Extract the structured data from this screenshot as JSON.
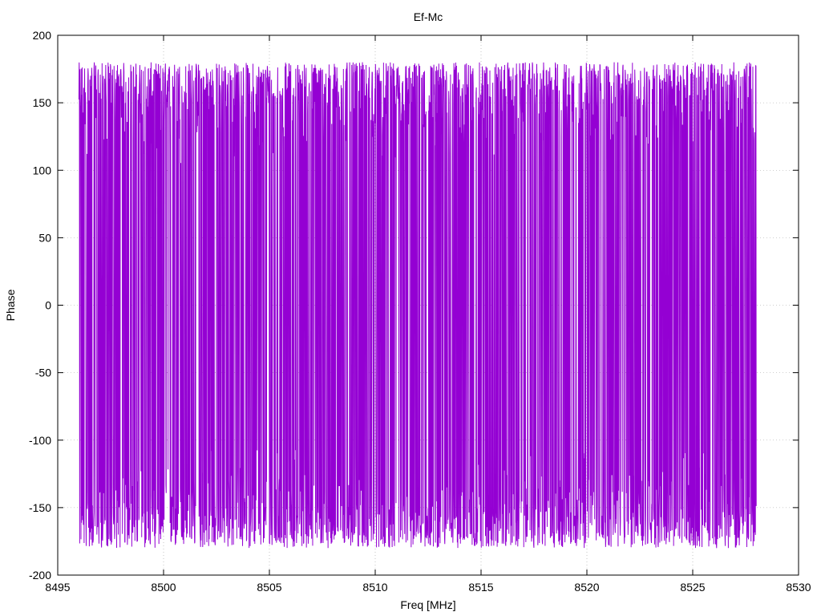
{
  "chart_data": {
    "type": "line",
    "title": "Ef-Mc",
    "xlabel": "Freq [MHz]",
    "ylabel": "Phase",
    "xlim": [
      8495,
      8530
    ],
    "ylim": [
      -200,
      200
    ],
    "xticks": [
      8495,
      8500,
      8505,
      8510,
      8515,
      8520,
      8525,
      8530
    ],
    "yticks": [
      200,
      150,
      100,
      50,
      0,
      -50,
      -100,
      -150,
      -200
    ],
    "grid": true,
    "series": [
      {
        "color": "#9400d3",
        "x_range": [
          8496,
          8528
        ],
        "y_range": [
          -180,
          180
        ],
        "description_of_values": "dense phase-wrapped signal spanning nearly the full range at every sample"
      }
    ]
  },
  "colors": {
    "series": "#9400d3",
    "grid": "#a0a0a0",
    "axis": "#000000",
    "background": "#ffffff"
  }
}
